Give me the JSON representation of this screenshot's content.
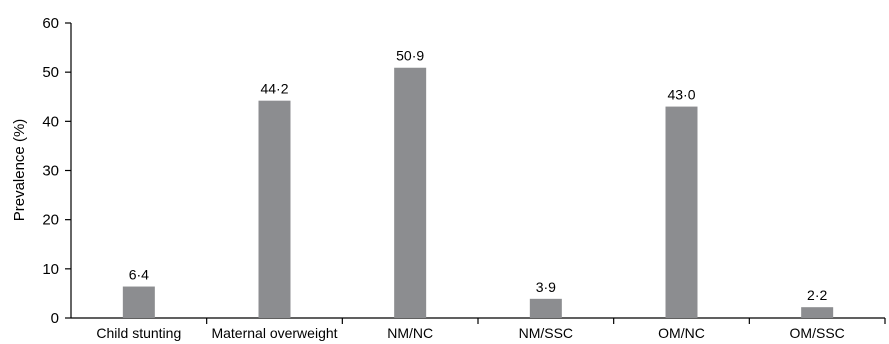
{
  "chart_data": {
    "type": "bar",
    "categories": [
      "Child stunting",
      "Maternal overweight",
      "NM/NC",
      "NM/SSC",
      "OM/NC",
      "OM/SSC"
    ],
    "values": [
      6.4,
      44.2,
      50.9,
      3.9,
      43.0,
      2.2
    ],
    "value_labels": [
      "6·4",
      "44·2",
      "50·9",
      "3·9",
      "43·0",
      "2·2"
    ],
    "title": "",
    "xlabel": "",
    "ylabel": "Prevalence (%)",
    "ylim": [
      0,
      60
    ],
    "yticks": [
      0,
      10,
      20,
      30,
      40,
      50,
      60
    ],
    "grid": false,
    "bar_color": "#8c8d90",
    "axis_color": "#000000"
  }
}
